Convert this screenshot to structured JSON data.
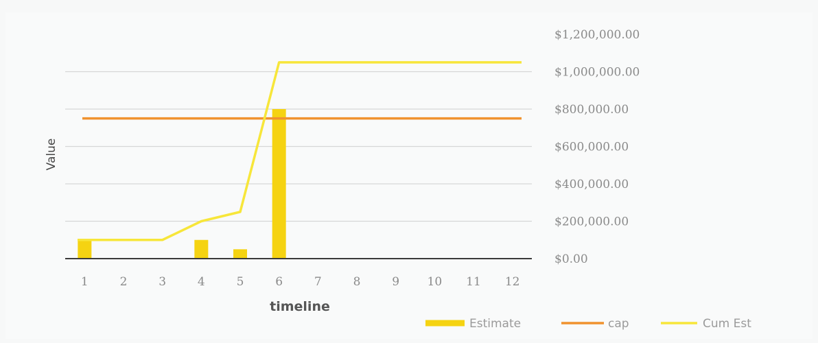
{
  "chart_data": {
    "type": "bar",
    "title": "",
    "xlabel": "timeline",
    "ylabel": "Value",
    "x": [
      1,
      2,
      3,
      4,
      5,
      6,
      7,
      8,
      9,
      10,
      11,
      12
    ],
    "ylim": [
      0,
      1200000
    ],
    "yticks": [
      "$0.00",
      "$200,000.00",
      "$400,000.00",
      "$600,000.00",
      "$800,000.00",
      "$1,000,000.00",
      "$1,200,000.00"
    ],
    "grid": true,
    "legend_position": "bottom-right",
    "series": [
      {
        "name": "Estimate",
        "type": "bar",
        "color": "#f5d312",
        "values": [
          100000,
          0,
          0,
          100000,
          50000,
          800000,
          0,
          0,
          0,
          0,
          0,
          0
        ]
      },
      {
        "name": "cap",
        "type": "line",
        "color": "#f0922e",
        "values": [
          750000,
          750000,
          750000,
          750000,
          750000,
          750000,
          750000,
          750000,
          750000,
          750000,
          750000,
          750000
        ]
      },
      {
        "name": "Cum Est",
        "type": "line",
        "color": "#f7e63a",
        "values": [
          100000,
          100000,
          100000,
          200000,
          250000,
          1050000,
          1050000,
          1050000,
          1050000,
          1050000,
          1050000,
          1050000
        ]
      }
    ]
  }
}
